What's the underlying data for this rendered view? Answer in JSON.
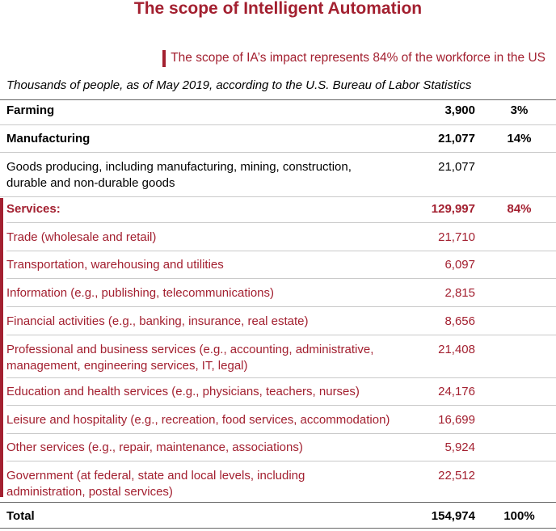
{
  "title": "The scope of Intelligent Automation",
  "callout": "The scope of IA’s impact represents 84% of the workforce in the US",
  "subtitle": "Thousands of people, as of May 2019, according to the U.S. Bureau of Labor Statistics",
  "rows": {
    "farming": {
      "label": "Farming",
      "value": "3,900",
      "pct": "3%"
    },
    "manufacturing": {
      "label": "Manufacturing",
      "value": "21,077",
      "pct": "14%"
    },
    "goods": {
      "label_line1": "Goods producing, including manufacturing, mining, construction,",
      "label_line2": "durable and non-durable goods",
      "value": "21,077"
    },
    "services": {
      "label": "Services:",
      "value": "129,997",
      "pct": "84%"
    },
    "trade": {
      "label": "Trade (wholesale and retail)",
      "value": "21,710"
    },
    "transport": {
      "label": "Transportation, warehousing and utilities",
      "value": "6,097"
    },
    "information": {
      "label": "Information (e.g., publishing, telecommunications)",
      "value": "2,815"
    },
    "financial": {
      "label": "Financial activities (e.g., banking, insurance, real estate)",
      "value": "8,656"
    },
    "professional": {
      "label_line1": "Professional and business services (e.g., accounting, administrative,",
      "label_line2": "management, engineering services, IT, legal)",
      "value": "21,408"
    },
    "education": {
      "label": "Education and health services (e.g., physicians, teachers, nurses)",
      "value": "24,176"
    },
    "leisure": {
      "label": "Leisure and hospitality (e.g., recreation, food services, accommodation)",
      "value": "16,699"
    },
    "other": {
      "label": "Other services (e.g., repair, maintenance, associations)",
      "value": "5,924"
    },
    "government": {
      "label_line1": "Government (at federal, state and local levels, including",
      "label_line2": "administration, postal services)",
      "value": "22,512"
    },
    "total": {
      "label": "Total",
      "value": "154,974",
      "pct": "100%"
    }
  },
  "colors": {
    "accent": "#a32030"
  }
}
